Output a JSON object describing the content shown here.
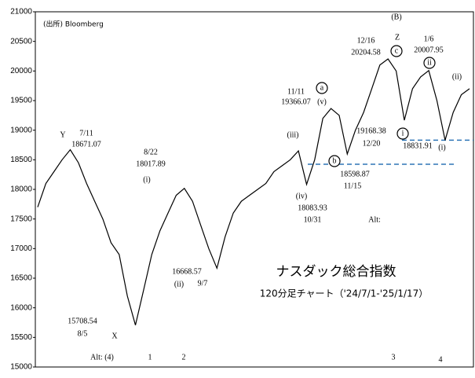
{
  "chart_data": {
    "type": "line",
    "title": "ナスダック総合指数",
    "subtitle": "120分足チャート（'24/7/1-'25/1/17）",
    "source": "(出所) Bloomberg",
    "color": "#000000",
    "values": [
      17700,
      18100,
      18300,
      18500,
      18671,
      18450,
      18100,
      17800,
      17500,
      17100,
      16900,
      16200,
      15708,
      16300,
      16900,
      17300,
      17600,
      17900,
      18017,
      17800,
      17400,
      17000,
      16668,
      17200,
      17600,
      17800,
      17900,
      18000,
      18100,
      18300,
      18400,
      18500,
      18650,
      18083,
      18500,
      19200,
      19366,
      19250,
      18598,
      19000,
      19300,
      19700,
      20100,
      20204,
      20000,
      19168,
      19700,
      19900,
      20007,
      19500,
      18831,
      19300,
      19600,
      19700
    ],
    "ylim": [
      15000,
      21000
    ],
    "yticks": [
      15000,
      15500,
      16000,
      16500,
      17000,
      17500,
      18000,
      18500,
      19000,
      19500,
      20000,
      20500,
      21000
    ],
    "reference_lines": [
      {
        "value": 18831.91,
        "color": "#2e75b6"
      },
      {
        "value": 18425,
        "color": "#2e75b6"
      }
    ],
    "annotations": [
      {
        "text": "(B)"
      },
      {
        "text": "Z"
      },
      {
        "text": "c",
        "style": "circle"
      },
      {
        "text": "12/16"
      },
      {
        "text": "20204.58"
      },
      {
        "text": "1/6"
      },
      {
        "text": "20007.95"
      },
      {
        "text": "ii",
        "style": "circle"
      },
      {
        "text": "(ii)"
      },
      {
        "text": "11/11"
      },
      {
        "text": "19366.07"
      },
      {
        "text": "a",
        "style": "circle"
      },
      {
        "text": "(v)"
      },
      {
        "text": "(iii)"
      },
      {
        "text": "19168.38"
      },
      {
        "text": "12/20"
      },
      {
        "text": "i",
        "style": "circle"
      },
      {
        "text": "18831.91",
        "color": "#2e75b6"
      },
      {
        "text": "(i)"
      },
      {
        "text": "b",
        "style": "circle"
      },
      {
        "text": "18598.87"
      },
      {
        "text": "11/15"
      },
      {
        "text": "(iv)"
      },
      {
        "text": "18083.93"
      },
      {
        "text": "10/31"
      },
      {
        "text": "Alt:"
      },
      {
        "text": "Y"
      },
      {
        "text": "7/11"
      },
      {
        "text": "18671.07"
      },
      {
        "text": "8/22"
      },
      {
        "text": "18017.89"
      },
      {
        "text": "(i)"
      },
      {
        "text": "16668.57"
      },
      {
        "text": "9/7"
      },
      {
        "text": "(ii)"
      },
      {
        "text": "X"
      },
      {
        "text": "15708.54"
      },
      {
        "text": "8/5"
      },
      {
        "text": "Alt: (4)"
      },
      {
        "text": "1"
      },
      {
        "text": "2"
      },
      {
        "text": "3"
      },
      {
        "text": "4"
      }
    ]
  }
}
